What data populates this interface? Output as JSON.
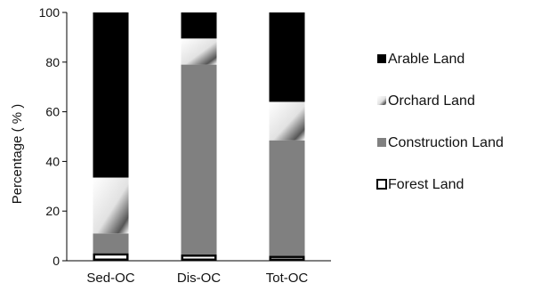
{
  "chart_data": {
    "type": "bar",
    "stacked": true,
    "title": "",
    "xlabel": "",
    "ylabel": "Percentage ( % )",
    "ylim": [
      0,
      100
    ],
    "yticks": [
      "0",
      "20",
      "40",
      "60",
      "80",
      "100"
    ],
    "grid": false,
    "legend_position": "right",
    "categories": [
      "Sed-OC",
      "Dis-OC",
      "Tot-OC"
    ],
    "series": [
      {
        "name": "Forest Land",
        "values": [
          3,
          2.5,
          2
        ],
        "color": "#ffffff",
        "edge": "#000000"
      },
      {
        "name": "Construction Land",
        "values": [
          8,
          76.5,
          46.5
        ],
        "color": "#808080"
      },
      {
        "name": "Orchard Land",
        "values": [
          22.5,
          10.5,
          15.5
        ],
        "color": "#c8c8c8",
        "pattern": "gradient-diagonal"
      },
      {
        "name": "Arable Land",
        "values": [
          66.5,
          10.5,
          36
        ],
        "color": "#000000"
      }
    ]
  }
}
